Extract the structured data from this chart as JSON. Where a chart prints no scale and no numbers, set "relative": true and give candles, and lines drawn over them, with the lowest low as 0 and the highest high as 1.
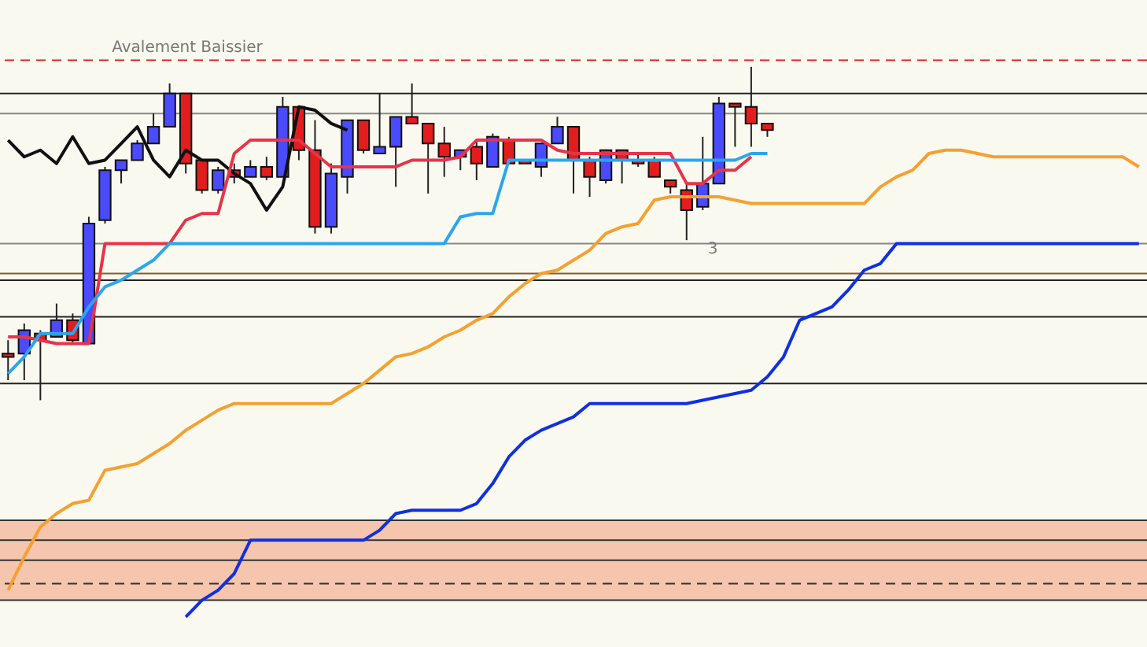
{
  "chart_data": {
    "type": "candlestick",
    "relative": true,
    "categories": [
      null,
      null,
      null,
      null,
      null,
      null,
      null,
      null,
      null,
      null,
      null,
      null,
      null,
      null,
      null,
      null,
      null,
      null,
      null,
      null,
      null,
      null,
      null,
      null,
      null,
      null,
      null,
      null,
      null,
      null,
      null,
      null,
      null,
      null,
      null,
      null,
      null,
      null,
      null,
      null,
      null,
      null,
      null,
      null,
      null,
      null,
      null,
      null,
      null,
      null,
      null,
      null,
      null,
      null,
      null,
      null,
      null,
      null,
      null,
      null,
      null,
      null,
      null,
      null,
      null,
      null,
      null,
      null,
      null,
      null,
      null
    ],
    "ohlc": [
      [
        0.14,
        0.18,
        0.06,
        0.13
      ],
      [
        0.14,
        0.23,
        0.06,
        0.21
      ],
      [
        0.2,
        0.21,
        0,
        0.18
      ],
      [
        0.19,
        0.29,
        0.19,
        0.24
      ],
      [
        0.24,
        0.26,
        0.17,
        0.18
      ],
      [
        0.17,
        0.55,
        0.17,
        0.53
      ],
      [
        0.54,
        0.7,
        0.53,
        0.69
      ],
      [
        0.69,
        0.72,
        0.65,
        0.72
      ],
      [
        0.72,
        0.78,
        0.72,
        0.77
      ],
      [
        0.77,
        0.86,
        0.77,
        0.82
      ],
      [
        0.82,
        0.95,
        0.82,
        0.92
      ],
      [
        0.92,
        0.92,
        0.68,
        0.71
      ],
      [
        0.72,
        0.72,
        0.62,
        0.63
      ],
      [
        0.63,
        0.7,
        0.62,
        0.69
      ],
      [
        0.69,
        0.71,
        0.65,
        0.67
      ],
      [
        0.67,
        0.72,
        0.67,
        0.7
      ],
      [
        0.7,
        0.73,
        0.66,
        0.67
      ],
      [
        0.67,
        0.91,
        0.67,
        0.88
      ],
      [
        0.88,
        0.88,
        0.72,
        0.75
      ],
      [
        0.75,
        0.84,
        0.5,
        0.52
      ],
      [
        0.52,
        0.71,
        0.5,
        0.68
      ],
      [
        0.67,
        0.84,
        0.62,
        0.84
      ],
      [
        0.84,
        0.84,
        0.74,
        0.75
      ],
      [
        0.74,
        0.92,
        0.74,
        0.76
      ],
      [
        0.76,
        0.85,
        0.64,
        0.85
      ],
      [
        0.85,
        0.95,
        0.83,
        0.83
      ],
      [
        0.83,
        0.83,
        0.62,
        0.77
      ],
      [
        0.77,
        0.82,
        0.67,
        0.73
      ],
      [
        0.73,
        0.75,
        0.69,
        0.75
      ],
      [
        0.76,
        0.78,
        0.66,
        0.71
      ],
      [
        0.7,
        0.8,
        0.7,
        0.79
      ],
      [
        0.78,
        0.79,
        0.71,
        0.71
      ],
      [
        0.72,
        0.72,
        0.71,
        0.71
      ],
      [
        0.7,
        0.77,
        0.67,
        0.77
      ],
      [
        0.77,
        0.85,
        0.77,
        0.82
      ],
      [
        0.82,
        0.82,
        0.62,
        0.72
      ],
      [
        0.72,
        0.73,
        0.61,
        0.67
      ],
      [
        0.66,
        0.75,
        0.65,
        0.75
      ],
      [
        0.75,
        0.75,
        0.65,
        0.72
      ],
      [
        0.72,
        0.74,
        0.7,
        0.71
      ],
      [
        0.72,
        0.73,
        0.67,
        0.67
      ],
      [
        0.66,
        0.66,
        0.62,
        0.64
      ],
      [
        0.63,
        0.65,
        0.48,
        0.57
      ],
      [
        0.58,
        0.79,
        0.57,
        0.65
      ],
      [
        0.65,
        0.91,
        0.65,
        0.89
      ],
      [
        0.89,
        0.89,
        0.76,
        0.88
      ],
      [
        0.88,
        1,
        0.76,
        0.83
      ],
      [
        0.83,
        0.83,
        0.79,
        0.81
      ],
      null,
      null,
      null,
      null,
      null,
      null,
      null,
      null,
      null,
      null,
      null,
      null,
      null,
      null,
      null,
      null,
      null,
      null,
      null,
      null,
      null,
      null,
      null
    ],
    "colors": [
      "#e31d1d",
      "#4a4aff",
      "#e31d1d",
      "#4a4aff",
      "#e31d1d",
      "#4a4aff",
      "#4a4aff",
      "#4a4aff",
      "#4a4aff",
      "#4a4aff",
      "#4a4aff",
      "#e31d1d",
      "#e31d1d",
      "#4a4aff",
      "#e31d1d",
      "#4a4aff",
      "#e31d1d",
      "#4a4aff",
      "#e31d1d",
      "#e31d1d",
      "#4a4aff",
      "#4a4aff",
      "#e31d1d",
      "#4a4aff",
      "#4a4aff",
      "#e31d1d",
      "#e31d1d",
      "#e31d1d",
      "#4a4aff",
      "#e31d1d",
      "#4a4aff",
      "#e31d1d",
      "#e31d1d",
      "#4a4aff",
      "#4a4aff",
      "#e31d1d",
      "#e31d1d",
      "#4a4aff",
      "#e31d1d",
      "#e31d1d",
      "#e31d1d",
      "#e31d1d",
      "#e31d1d",
      "#4a4aff",
      "#4a4aff",
      "#e31d1d",
      "#e31d1d",
      "#e31d1d",
      null,
      null,
      null,
      null,
      null,
      null,
      null,
      null,
      null,
      null,
      null,
      null,
      null,
      null,
      null,
      null,
      null,
      null,
      null,
      null,
      null,
      null,
      null
    ],
    "series": [
      {
        "type": "line",
        "color": "#111111",
        "values": [
          0.78,
          0.73,
          0.75,
          0.71,
          0.79,
          0.71,
          0.72,
          0.77,
          0.82,
          0.72,
          0.67,
          0.75,
          0.72,
          0.72,
          0.68,
          0.65,
          0.57,
          0.64,
          0.88,
          0.87,
          0.83,
          0.81,
          null,
          null,
          null,
          null,
          null,
          null,
          null,
          null,
          null,
          null,
          null,
          null,
          null,
          null,
          null,
          null,
          null,
          null,
          null,
          null,
          null,
          null,
          null,
          null,
          null,
          null,
          null,
          null,
          null,
          null,
          null,
          null,
          null,
          null,
          null,
          null,
          null,
          null,
          null,
          null,
          null,
          null,
          null,
          null,
          null,
          null,
          null,
          null,
          null
        ]
      },
      {
        "type": "line",
        "color": "#e8334a",
        "values": [
          0.19,
          0.19,
          0.18,
          0.17,
          0.17,
          0.17,
          0.47,
          0.47,
          0.47,
          0.47,
          0.47,
          0.54,
          0.56,
          0.56,
          0.74,
          0.78,
          0.78,
          0.78,
          0.78,
          0.74,
          0.7,
          0.7,
          0.7,
          0.7,
          0.7,
          0.72,
          0.72,
          0.72,
          0.73,
          0.78,
          0.78,
          0.78,
          0.78,
          0.78,
          0.75,
          0.74,
          0.74,
          0.74,
          0.74,
          0.74,
          0.74,
          0.74,
          0.65,
          0.65,
          0.69,
          0.69,
          0.73,
          null,
          null,
          null,
          null,
          null,
          null,
          null,
          null,
          null,
          null,
          null,
          null,
          null,
          null,
          null,
          null,
          null,
          null,
          null,
          null,
          null,
          null,
          null,
          null
        ]
      },
      {
        "type": "line",
        "color": "#2aa6f0",
        "values": [
          0.08,
          0.13,
          0.2,
          0.2,
          0.2,
          0.28,
          0.34,
          0.36,
          0.39,
          0.42,
          0.47,
          0.47,
          0.47,
          0.47,
          0.47,
          0.47,
          0.47,
          0.47,
          0.47,
          0.47,
          0.47,
          0.47,
          0.47,
          0.47,
          0.47,
          0.47,
          0.47,
          0.47,
          0.55,
          0.56,
          0.56,
          0.72,
          0.72,
          0.72,
          0.72,
          0.72,
          0.72,
          0.72,
          0.72,
          0.72,
          0.72,
          0.72,
          0.72,
          0.72,
          0.72,
          0.72,
          0.74,
          0.74,
          null,
          null,
          null,
          null,
          null,
          null,
          null,
          null,
          null,
          null,
          null,
          null,
          null,
          null,
          null,
          null,
          null,
          null,
          null,
          null,
          null,
          null,
          null
        ]
      },
      {
        "type": "line",
        "color": "#f5a030",
        "values": [
          -0.57,
          -0.47,
          -0.38,
          -0.34,
          -0.31,
          -0.3,
          -0.21,
          -0.2,
          -0.19,
          -0.16,
          -0.13,
          -0.09,
          -0.06,
          -0.03,
          -0.01,
          -0.01,
          -0.01,
          -0.01,
          -0.01,
          -0.01,
          -0.01,
          0.02,
          0.05,
          0.09,
          0.13,
          0.14,
          0.16,
          0.19,
          0.21,
          0.24,
          0.26,
          0.31,
          0.35,
          0.38,
          0.39,
          0.42,
          0.45,
          0.5,
          0.52,
          0.53,
          0.6,
          0.61,
          0.61,
          0.61,
          0.61,
          0.6,
          0.59,
          0.59,
          0.59,
          0.59,
          0.59,
          0.59,
          0.59,
          0.59,
          0.64,
          0.67,
          0.69,
          0.74,
          0.75,
          0.75,
          0.74,
          0.73,
          0.73,
          0.73,
          0.73,
          0.73,
          0.73,
          0.73,
          0.73,
          0.73,
          0.7
        ]
      },
      {
        "type": "line",
        "color": "#1030e0",
        "values": [
          null,
          null,
          null,
          null,
          null,
          null,
          null,
          null,
          null,
          null,
          null,
          -0.65,
          -0.6,
          -0.57,
          -0.52,
          -0.42,
          -0.42,
          -0.42,
          -0.42,
          -0.42,
          -0.42,
          -0.42,
          -0.42,
          -0.39,
          -0.34,
          -0.33,
          -0.33,
          -0.33,
          -0.33,
          -0.31,
          -0.25,
          -0.17,
          -0.12,
          -0.09,
          -0.07,
          -0.05,
          -0.01,
          -0.01,
          -0.01,
          -0.01,
          -0.01,
          -0.01,
          -0.01,
          0,
          0.01,
          0.02,
          0.03,
          0.07,
          0.13,
          0.24,
          0.26,
          0.28,
          0.33,
          0.39,
          0.41,
          0.47,
          0.47,
          0.47,
          0.47,
          0.47,
          0.47,
          0.47,
          0.47,
          0.47,
          0.47,
          0.47,
          0.47,
          0.47,
          0.47,
          0.47,
          0.47
        ]
      }
    ],
    "ref_lines": [
      {
        "axis": "y",
        "value": 1.02,
        "color": "#e02020",
        "line_style": "dashed"
      },
      {
        "axis": "y",
        "value": 0.92,
        "color": "#222222"
      },
      {
        "axis": "y",
        "value": 0.86,
        "color": "#888888"
      },
      {
        "axis": "y",
        "value": 0.47,
        "color": "#888888"
      },
      {
        "axis": "y",
        "value": 0.38,
        "color": "#8b5a2b"
      },
      {
        "axis": "y",
        "value": 0.36,
        "color": "#222222"
      },
      {
        "axis": "y",
        "value": 0.25,
        "color": "#222222"
      },
      {
        "axis": "y",
        "value": 0.05,
        "color": "#222222"
      },
      {
        "axis": "y",
        "value": -0.36,
        "color": "#333333"
      },
      {
        "axis": "y",
        "value": -0.42,
        "color": "#333333"
      },
      {
        "axis": "y",
        "value": -0.48,
        "color": "#333333"
      },
      {
        "axis": "y",
        "value": -0.55,
        "color": "#333333",
        "line_style": "dashed"
      },
      {
        "axis": "y",
        "value": -0.6,
        "color": "#333333"
      }
    ],
    "bands": [
      {
        "axis": "y",
        "from": -0.36,
        "to": -0.6,
        "color": "#f4bfa5"
      }
    ],
    "annotations": [
      "Avalement Baissier",
      "3"
    ]
  }
}
